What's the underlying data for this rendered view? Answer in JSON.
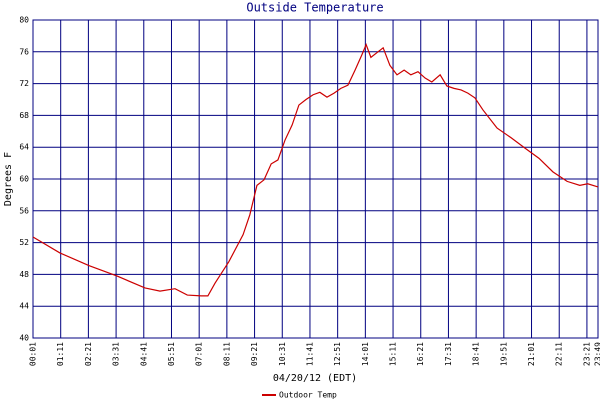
{
  "chart_data": {
    "type": "line",
    "title": "Outside Temperature",
    "x_label": "04/20/12 (EDT)",
    "y_label": "Degrees F",
    "x": [
      1,
      69,
      143,
      213,
      284,
      322,
      360,
      391,
      426,
      443,
      461,
      496,
      532,
      549,
      567,
      585,
      603,
      620,
      638,
      656,
      673,
      691,
      709,
      726,
      744,
      762,
      779,
      797,
      815,
      832,
      843,
      855,
      873,
      886,
      903,
      921,
      939,
      956,
      974,
      992,
      1009,
      1030,
      1047,
      1065,
      1083,
      1100,
      1118,
      1138,
      1174,
      1209,
      1244,
      1280,
      1315,
      1351,
      1383,
      1403,
      1429
    ],
    "series": [
      {
        "name": "Outdoor Temp",
        "color": "#cc0000",
        "values": [
          52.7,
          50.7,
          49.1,
          47.8,
          46.3,
          45.9,
          46.2,
          45.4,
          45.3,
          45.3,
          46.9,
          49.6,
          53.0,
          55.5,
          59.2,
          59.9,
          61.9,
          62.4,
          64.9,
          66.8,
          69.3,
          70.0,
          70.6,
          70.9,
          70.3,
          70.8,
          71.4,
          71.8,
          73.7,
          75.6,
          76.9,
          75.3,
          76.0,
          76.5,
          74.3,
          73.1,
          73.7,
          73.1,
          73.5,
          72.7,
          72.2,
          73.1,
          71.7,
          71.4,
          71.2,
          70.8,
          70.2,
          68.7,
          66.4,
          65.2,
          63.9,
          62.6,
          60.9,
          59.7,
          59.2,
          59.4,
          59.0
        ]
      }
    ],
    "xlim": [
      1,
      1429
    ],
    "xticks": [
      {
        "value": 1,
        "label": "00:01"
      },
      {
        "value": 71,
        "label": "01:11"
      },
      {
        "value": 141,
        "label": "02:21"
      },
      {
        "value": 211,
        "label": "03:31"
      },
      {
        "value": 281,
        "label": "04:41"
      },
      {
        "value": 351,
        "label": "05:51"
      },
      {
        "value": 421,
        "label": "07:01"
      },
      {
        "value": 491,
        "label": "08:11"
      },
      {
        "value": 561,
        "label": "09:21"
      },
      {
        "value": 631,
        "label": "10:31"
      },
      {
        "value": 701,
        "label": "11:41"
      },
      {
        "value": 771,
        "label": "12:51"
      },
      {
        "value": 841,
        "label": "14:01"
      },
      {
        "value": 911,
        "label": "15:11"
      },
      {
        "value": 981,
        "label": "16:21"
      },
      {
        "value": 1051,
        "label": "17:31"
      },
      {
        "value": 1121,
        "label": "18:41"
      },
      {
        "value": 1191,
        "label": "19:51"
      },
      {
        "value": 1261,
        "label": "21:01"
      },
      {
        "value": 1331,
        "label": "22:11"
      },
      {
        "value": 1401,
        "label": "23:21"
      },
      {
        "value": 1429,
        "label": "23:49"
      }
    ],
    "ylim": [
      40,
      80
    ],
    "yticks": [
      40,
      44,
      48,
      52,
      56,
      60,
      64,
      68,
      72,
      76,
      80
    ],
    "grid": true,
    "grid_color": "#000080",
    "legend": "bottom"
  }
}
